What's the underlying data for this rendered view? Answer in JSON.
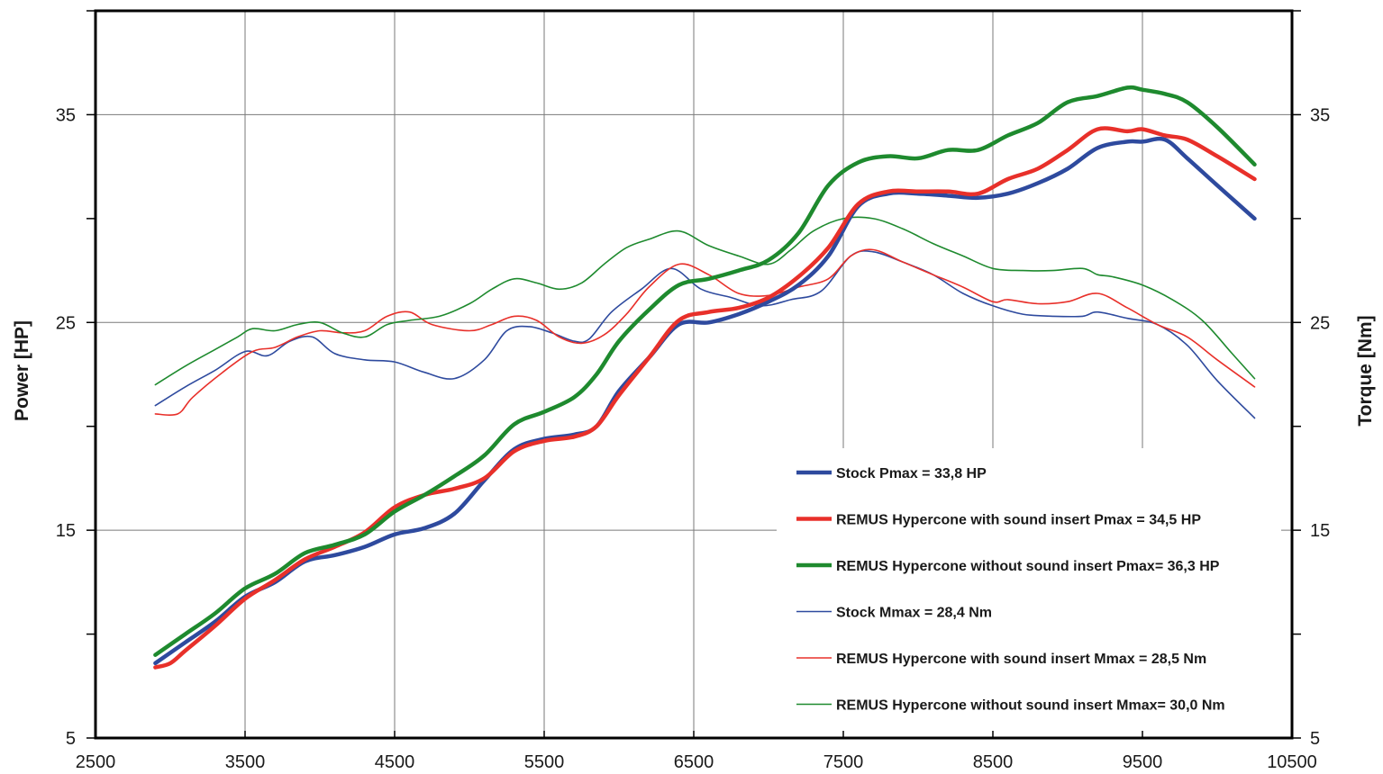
{
  "chart_data": {
    "type": "line",
    "title": "",
    "xlabel": "",
    "ylabel": "Power [HP]",
    "y2label": "Torque [Nm]",
    "xlim": [
      2500,
      10500
    ],
    "ylim": [
      5,
      40
    ],
    "y2lim": [
      5,
      40
    ],
    "x_ticks": [
      2500,
      3500,
      4500,
      5500,
      6500,
      7500,
      8500,
      9500,
      10500
    ],
    "y_ticks": [
      5,
      15,
      25,
      35
    ],
    "y2_ticks": [
      5,
      15,
      25,
      35
    ],
    "grid": true,
    "legend_position": "bottom-right",
    "colors": {
      "stock": "#2e4a9e",
      "with_sound": "#e8302a",
      "without_sound": "#1e8a2e"
    },
    "series": [
      {
        "name": "Stock Pmax = 33,8 HP",
        "color": "#2e4a9e",
        "style": "thick",
        "x": [
          2900,
          3100,
          3300,
          3500,
          3700,
          3900,
          4100,
          4300,
          4500,
          4700,
          4900,
          5100,
          5300,
          5500,
          5700,
          5850,
          6000,
          6200,
          6400,
          6600,
          6800,
          7000,
          7200,
          7400,
          7600,
          7800,
          8000,
          8200,
          8400,
          8600,
          8800,
          9000,
          9200,
          9400,
          9500,
          9650,
          9800,
          10000,
          10250
        ],
        "values": [
          8.6,
          9.6,
          10.6,
          11.8,
          12.5,
          13.5,
          13.8,
          14.2,
          14.8,
          15.1,
          15.8,
          17.4,
          18.9,
          19.4,
          19.6,
          20,
          21.7,
          23.3,
          24.9,
          25,
          25.4,
          26,
          26.8,
          28.2,
          30.6,
          31.2,
          31.2,
          31.1,
          31,
          31.2,
          31.7,
          32.4,
          33.4,
          33.7,
          33.7,
          33.8,
          32.9,
          31.6,
          30
        ]
      },
      {
        "name": "REMUS Hypercone with sound insert Pmax =  34,5 HP",
        "color": "#e8302a",
        "style": "thick",
        "x": [
          2900,
          3000,
          3100,
          3300,
          3500,
          3700,
          3900,
          4100,
          4300,
          4500,
          4700,
          4900,
          5100,
          5300,
          5500,
          5700,
          5850,
          6000,
          6200,
          6400,
          6600,
          6800,
          7000,
          7200,
          7400,
          7600,
          7800,
          8000,
          8200,
          8400,
          8600,
          8800,
          9000,
          9200,
          9400,
          9500,
          9650,
          9800,
          10000,
          10250
        ],
        "values": [
          8.4,
          8.6,
          9.2,
          10.4,
          11.7,
          12.6,
          13.6,
          14.2,
          14.9,
          16.1,
          16.7,
          17,
          17.5,
          18.8,
          19.3,
          19.5,
          20,
          21.5,
          23.3,
          25.1,
          25.5,
          25.7,
          26.2,
          27.2,
          28.6,
          30.7,
          31.3,
          31.3,
          31.3,
          31.2,
          31.9,
          32.4,
          33.3,
          34.3,
          34.2,
          34.3,
          34,
          33.8,
          33,
          31.9
        ]
      },
      {
        "name": "REMUS Hypercone without sound insert Pmax= 36,3 HP",
        "color": "#1e8a2e",
        "style": "thick",
        "x": [
          2900,
          3100,
          3300,
          3500,
          3700,
          3900,
          4100,
          4300,
          4500,
          4700,
          4900,
          5100,
          5300,
          5500,
          5700,
          5850,
          6000,
          6200,
          6400,
          6600,
          6800,
          7000,
          7200,
          7400,
          7600,
          7800,
          8000,
          8200,
          8400,
          8600,
          8800,
          9000,
          9200,
          9400,
          9500,
          9650,
          9800,
          10000,
          10250
        ],
        "values": [
          9,
          10,
          11,
          12.2,
          12.9,
          13.9,
          14.3,
          14.8,
          15.9,
          16.7,
          17.6,
          18.6,
          20.1,
          20.7,
          21.4,
          22.5,
          24.1,
          25.6,
          26.8,
          27.1,
          27.5,
          28,
          29.3,
          31.6,
          32.7,
          33,
          32.9,
          33.3,
          33.3,
          34,
          34.6,
          35.6,
          35.9,
          36.3,
          36.2,
          36,
          35.6,
          34.4,
          32.6
        ]
      },
      {
        "name": "Stock Mmax = 28,4 Nm",
        "color": "#2e4a9e",
        "style": "thin",
        "x": [
          2900,
          3100,
          3300,
          3500,
          3650,
          3800,
          3950,
          4100,
          4300,
          4500,
          4700,
          4900,
          5100,
          5250,
          5400,
          5550,
          5700,
          5800,
          5950,
          6150,
          6350,
          6550,
          6750,
          6950,
          7150,
          7350,
          7550,
          7700,
          7900,
          8100,
          8300,
          8500,
          8700,
          8900,
          9100,
          9200,
          9400,
          9600,
          9800,
          10000,
          10250
        ],
        "values": [
          21,
          21.9,
          22.7,
          23.6,
          23.4,
          24.1,
          24.3,
          23.5,
          23.2,
          23.1,
          22.6,
          22.3,
          23.2,
          24.6,
          24.8,
          24.5,
          24.1,
          24.2,
          25.5,
          26.6,
          27.6,
          26.6,
          26.2,
          25.8,
          26.1,
          26.5,
          28.2,
          28.4,
          27.9,
          27.3,
          26.4,
          25.8,
          25.4,
          25.3,
          25.3,
          25.5,
          25.2,
          24.9,
          23.9,
          22.2,
          20.4
        ]
      },
      {
        "name": "REMUS Hypercone with sound insert Mmax = 28,5 Nm",
        "color": "#e8302a",
        "style": "thin",
        "x": [
          2900,
          3050,
          3150,
          3350,
          3550,
          3700,
          3850,
          4000,
          4150,
          4300,
          4450,
          4600,
          4750,
          5000,
          5150,
          5300,
          5450,
          5600,
          5750,
          5900,
          6050,
          6200,
          6400,
          6600,
          6800,
          7000,
          7200,
          7400,
          7550,
          7700,
          7900,
          8100,
          8300,
          8500,
          8600,
          8800,
          9000,
          9200,
          9400,
          9600,
          9800,
          10000,
          10250
        ],
        "values": [
          20.6,
          20.6,
          21.4,
          22.6,
          23.6,
          23.8,
          24.3,
          24.6,
          24.5,
          24.6,
          25.3,
          25.5,
          24.9,
          24.6,
          24.9,
          25.3,
          25.1,
          24.3,
          24,
          24.4,
          25.4,
          26.7,
          27.8,
          27.3,
          26.4,
          26.3,
          26.7,
          27.1,
          28.2,
          28.5,
          27.9,
          27.3,
          26.7,
          26,
          26.1,
          25.9,
          26,
          26.4,
          25.7,
          24.9,
          24.3,
          23.2,
          21.9
        ]
      },
      {
        "name": "REMUS Hypercone without sound insert Mmax= 30,0 Nm",
        "color": "#1e8a2e",
        "style": "thin",
        "x": [
          2900,
          3100,
          3300,
          3450,
          3550,
          3700,
          3850,
          4000,
          4150,
          4300,
          4450,
          4600,
          4800,
          5000,
          5150,
          5300,
          5450,
          5600,
          5750,
          5900,
          6050,
          6200,
          6400,
          6600,
          6800,
          7000,
          7150,
          7300,
          7500,
          7700,
          7900,
          8100,
          8300,
          8500,
          8700,
          8900,
          9100,
          9200,
          9300,
          9500,
          9700,
          9900,
          10100,
          10250
        ],
        "values": [
          22,
          22.9,
          23.7,
          24.3,
          24.7,
          24.6,
          24.9,
          25,
          24.5,
          24.3,
          24.9,
          25.1,
          25.3,
          25.9,
          26.6,
          27.1,
          26.9,
          26.6,
          26.9,
          27.8,
          28.6,
          29,
          29.4,
          28.7,
          28.2,
          27.8,
          28.5,
          29.4,
          30,
          30,
          29.5,
          28.8,
          28.2,
          27.6,
          27.5,
          27.5,
          27.6,
          27.3,
          27.2,
          26.8,
          26.1,
          25.1,
          23.5,
          22.3
        ]
      }
    ]
  }
}
